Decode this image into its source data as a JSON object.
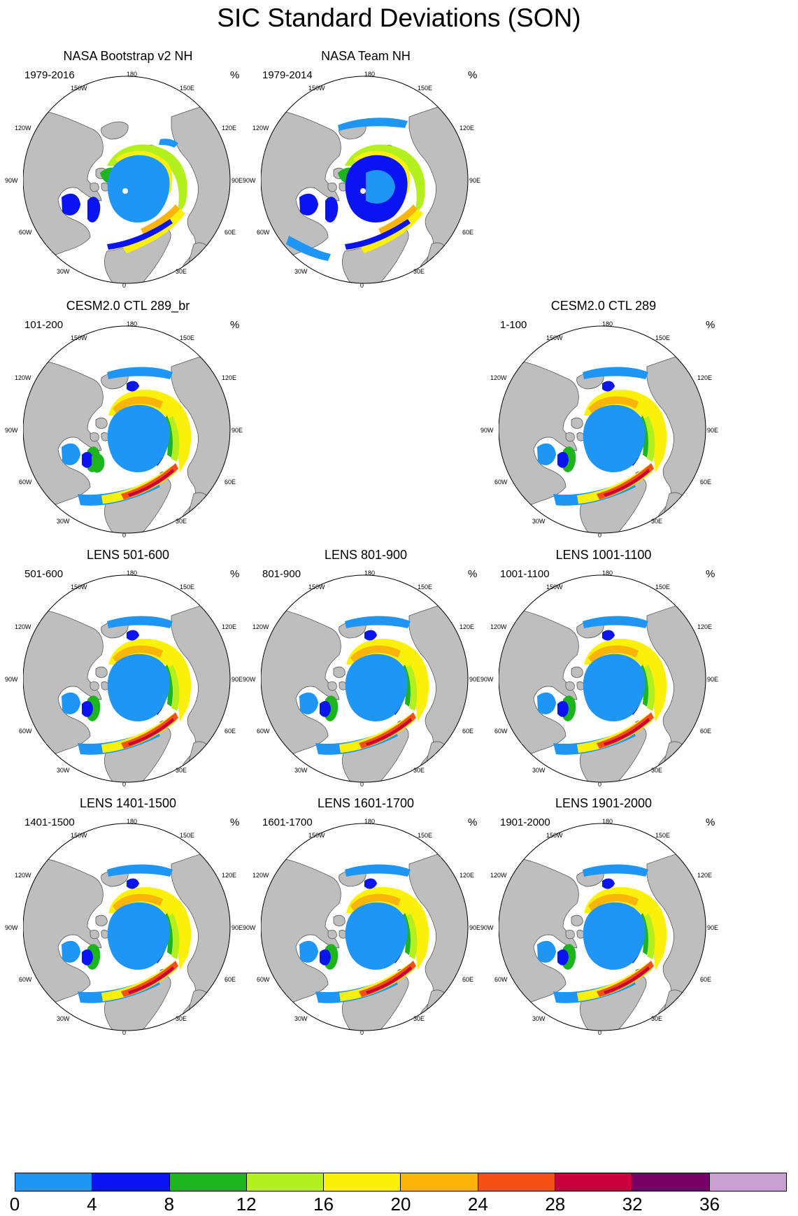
{
  "title": "SIC Standard Deviations (SON)",
  "unit": "%",
  "panels": [
    {
      "title": "NASA Bootstrap v2 NH",
      "period": "1979-2016",
      "pattern": "obs_bootstrap"
    },
    {
      "title": "NASA Team NH",
      "period": "1979-2014",
      "pattern": "obs_team"
    },
    {
      "title": "CESM2.0 CTL 289_br",
      "period": "101-200",
      "pattern": "model_a"
    },
    {
      "title": "CESM2.0 CTL 289",
      "period": "1-100",
      "pattern": "model_b"
    },
    {
      "title": "LENS 501-600",
      "period": "501-600",
      "pattern": "lens"
    },
    {
      "title": "LENS 801-900",
      "period": "801-900",
      "pattern": "lens"
    },
    {
      "title": "LENS 1001-1100",
      "period": "1001-1100",
      "pattern": "lens"
    },
    {
      "title": "LENS 1401-1500",
      "period": "1401-1500",
      "pattern": "lens"
    },
    {
      "title": "LENS 1601-1700",
      "period": "1601-1700",
      "pattern": "lens"
    },
    {
      "title": "LENS 1901-2000",
      "period": "1901-2000",
      "pattern": "lens"
    }
  ],
  "longitude_labels": {
    "top": "180",
    "top_left": "150W",
    "top_right": "150E",
    "upper_left": "120W",
    "upper_right": "120E",
    "left": "90W",
    "right": "90E",
    "lower_left": "60W",
    "lower_right": "60E",
    "bottom_left": "30W",
    "bottom_right": "30E",
    "bottom": "0"
  },
  "colorbar": {
    "ticks": [
      "0",
      "4",
      "8",
      "12",
      "16",
      "20",
      "24",
      "28",
      "32",
      "36"
    ],
    "colors": [
      "#1e96f5",
      "#0a14f0",
      "#1eb41e",
      "#b4f01e",
      "#faf00a",
      "#fab40a",
      "#f55014",
      "#c8003c",
      "#780064",
      "#c8a0d2"
    ]
  },
  "map_colors": {
    "land": "#bebebe",
    "ocean": "#ffffff",
    "coastline": "#5a5a5a",
    "outline": "#000000"
  }
}
